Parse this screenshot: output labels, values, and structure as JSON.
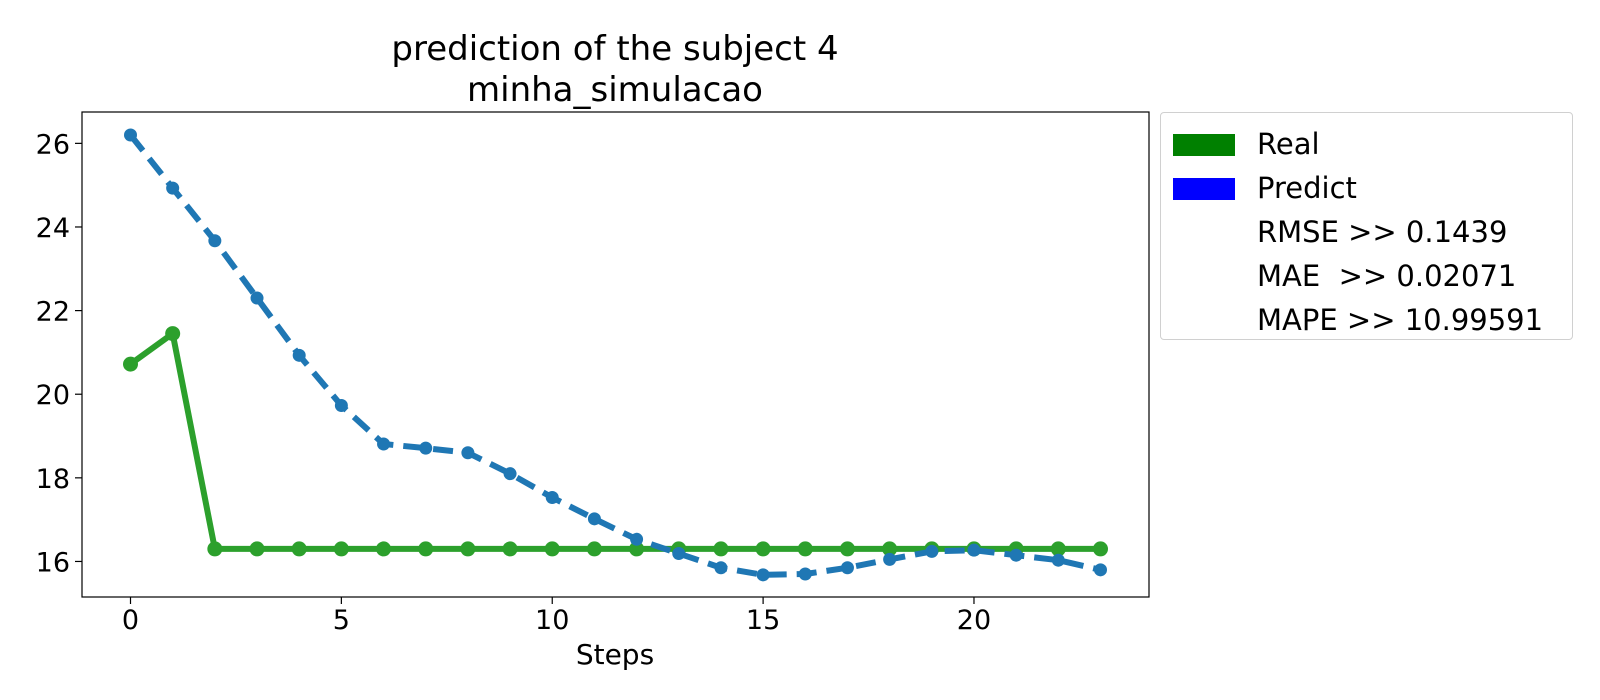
{
  "chart_data": {
    "type": "line",
    "title": "prediction of the subject 4",
    "subtitle": "minha_simulacao",
    "xlabel": "Steps",
    "ylabel": "",
    "xlim": [
      -1.15,
      24.15
    ],
    "ylim": [
      15.15,
      26.75
    ],
    "xticks": [
      0,
      5,
      10,
      15,
      20
    ],
    "yticks": [
      16,
      18,
      20,
      22,
      24,
      26
    ],
    "grid": false,
    "legend_position": "outside-right",
    "x": [
      0,
      1,
      2,
      3,
      4,
      5,
      6,
      7,
      8,
      9,
      10,
      11,
      12,
      13,
      14,
      15,
      16,
      17,
      18,
      19,
      20,
      21,
      22,
      23
    ],
    "series": [
      {
        "name": "Real",
        "color": "#2ca02c",
        "legend_color": "#008000",
        "style": "solid",
        "values": [
          20.72,
          21.45,
          16.3,
          16.3,
          16.3,
          16.3,
          16.3,
          16.3,
          16.3,
          16.3,
          16.3,
          16.3,
          16.3,
          16.3,
          16.3,
          16.3,
          16.3,
          16.3,
          16.3,
          16.3,
          16.3,
          16.3,
          16.3,
          16.3
        ]
      },
      {
        "name": "Predict",
        "color": "#1f77b4",
        "legend_color": "#0000ff",
        "style": "dashed",
        "values": [
          26.2,
          24.93,
          23.67,
          22.3,
          20.93,
          19.73,
          18.81,
          18.71,
          18.6,
          18.1,
          17.53,
          17.02,
          16.53,
          16.19,
          15.85,
          15.68,
          15.7,
          15.85,
          16.05,
          16.24,
          16.27,
          16.15,
          16.03,
          15.8
        ]
      }
    ],
    "annotations": [
      "RMSE >> 0.1439",
      "MAE  >> 0.02071",
      "MAPE >> 10.99591"
    ]
  }
}
